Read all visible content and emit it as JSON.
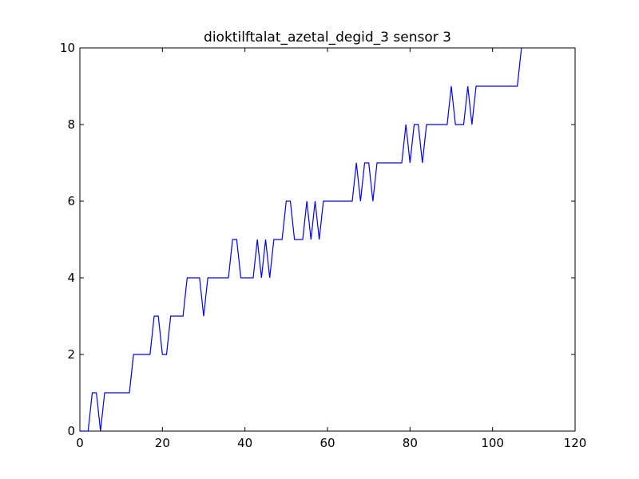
{
  "chart_data": {
    "type": "line",
    "title": "dioktilftalat_azetal_degid_3 sensor 3",
    "xlabel": "",
    "ylabel": "",
    "xlim": [
      0,
      120
    ],
    "ylim": [
      0,
      10
    ],
    "xticks": [
      0,
      20,
      40,
      60,
      80,
      100,
      120
    ],
    "yticks": [
      0,
      2,
      4,
      6,
      8,
      10
    ],
    "xtick_labels": [
      "0",
      "20",
      "40",
      "60",
      "80",
      "100",
      "120"
    ],
    "ytick_labels": [
      "0",
      "2",
      "4",
      "6",
      "8",
      "10"
    ],
    "grid": false,
    "series": [
      {
        "color": "#0000ff",
        "x": [
          0,
          1,
          2,
          3,
          4,
          5,
          6,
          7,
          8,
          9,
          10,
          11,
          12,
          13,
          14,
          15,
          16,
          17,
          18,
          19,
          20,
          21,
          22,
          23,
          24,
          25,
          26,
          27,
          28,
          29,
          30,
          31,
          32,
          33,
          34,
          35,
          36,
          37,
          38,
          39,
          40,
          41,
          42,
          43,
          44,
          45,
          46,
          47,
          48,
          49,
          50,
          51,
          52,
          53,
          54,
          55,
          56,
          57,
          58,
          59,
          60,
          61,
          62,
          63,
          64,
          65,
          66,
          67,
          68,
          69,
          70,
          71,
          72,
          73,
          74,
          75,
          76,
          77,
          78,
          79,
          80,
          81,
          82,
          83,
          84,
          85,
          86,
          87,
          88,
          89,
          90,
          91,
          92,
          93,
          94,
          95,
          96,
          97,
          98,
          99,
          100,
          101,
          102,
          103,
          104,
          105,
          106,
          107
        ],
        "y": [
          0,
          0,
          0,
          1,
          1,
          0,
          1,
          1,
          1,
          1,
          1,
          1,
          1,
          2,
          2,
          2,
          2,
          2,
          3,
          3,
          2,
          2,
          3,
          3,
          3,
          3,
          4,
          4,
          4,
          4,
          3,
          4,
          4,
          4,
          4,
          4,
          4,
          5,
          5,
          4,
          4,
          4,
          4,
          5,
          4,
          5,
          4,
          5,
          5,
          5,
          6,
          6,
          5,
          5,
          5,
          6,
          5,
          6,
          5,
          6,
          6,
          6,
          6,
          6,
          6,
          6,
          6,
          7,
          6,
          7,
          7,
          6,
          7,
          7,
          7,
          7,
          7,
          7,
          7,
          8,
          7,
          8,
          8,
          7,
          8,
          8,
          8,
          8,
          8,
          8,
          9,
          8,
          8,
          8,
          9,
          8,
          9,
          9,
          9,
          9,
          9,
          9,
          9,
          9,
          9,
          9,
          9,
          10
        ]
      }
    ]
  }
}
